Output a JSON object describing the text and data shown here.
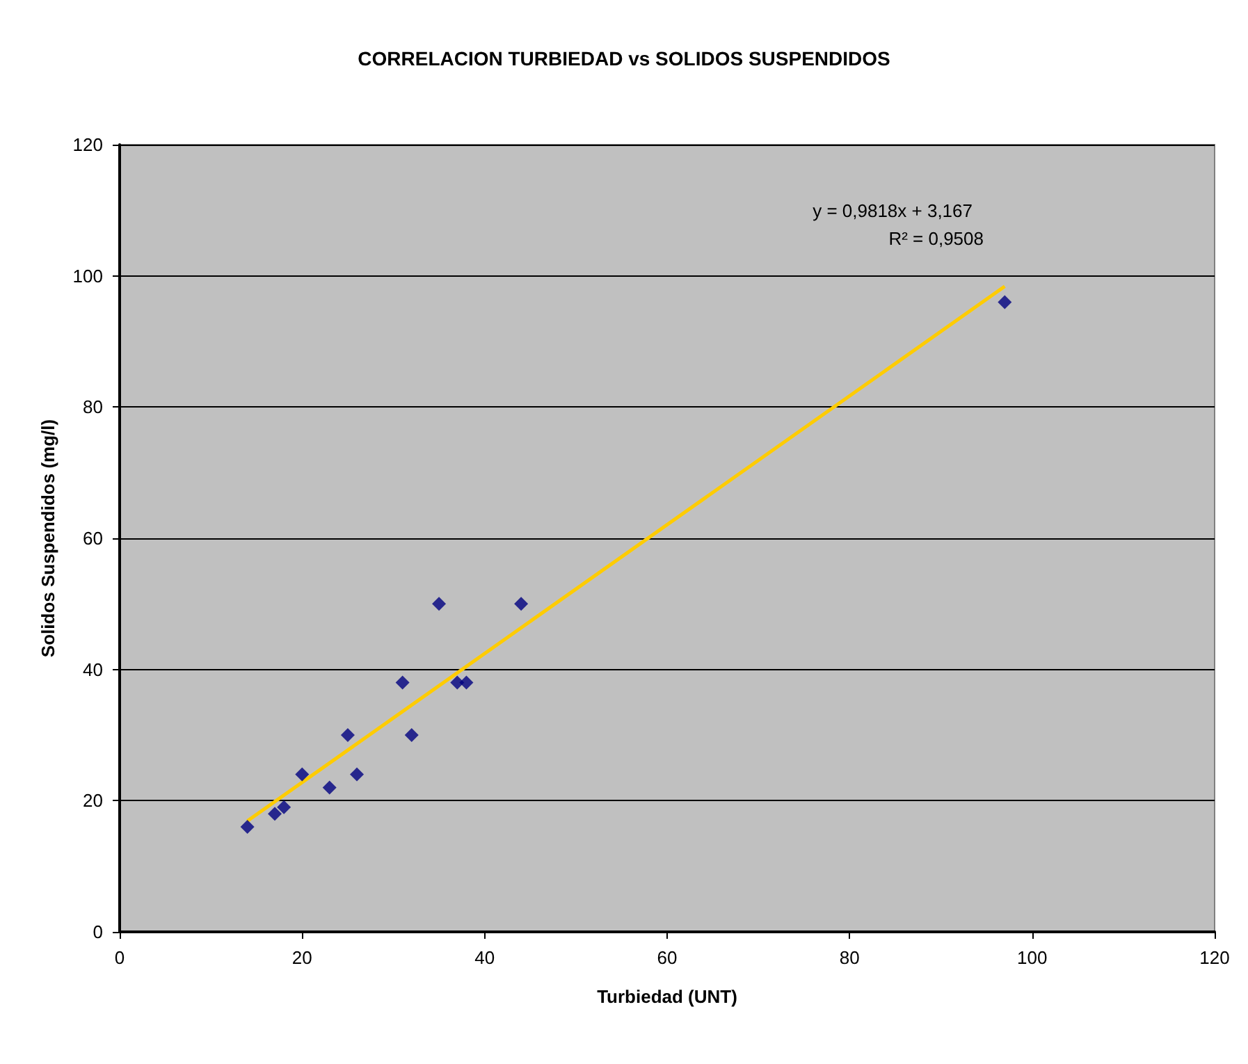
{
  "chart_data": {
    "type": "scatter",
    "title": "CORRELACION TURBIEDAD vs SOLIDOS SUSPENDIDOS",
    "xlabel": "Turbiedad (UNT)",
    "ylabel": "Solidos Suspendidos (mg/l)",
    "x": [
      14,
      17,
      18,
      20,
      23,
      25,
      26,
      31,
      32,
      35,
      37,
      38,
      44,
      97
    ],
    "series": [
      {
        "color": "#000080",
        "values": [
          16,
          18,
          19,
          24,
          22,
          30,
          24,
          38,
          30,
          50,
          38,
          38,
          50,
          96
        ],
        "marker": "diamond"
      },
      {
        "type": "line",
        "color": "#ffcc00",
        "x": [
          14,
          97
        ],
        "values": [
          16.9,
          98.4
        ],
        "marker": "none"
      }
    ],
    "xlim": [
      0,
      120
    ],
    "xticks": [
      0,
      20,
      40,
      60,
      80,
      100,
      120
    ],
    "ylim": [
      0,
      120
    ],
    "yticks": [
      0,
      20,
      40,
      60,
      80,
      100,
      120
    ],
    "grid": "y",
    "annotations": [
      "y = 0,9818x + 3,167",
      "R² = 0,9508"
    ]
  }
}
